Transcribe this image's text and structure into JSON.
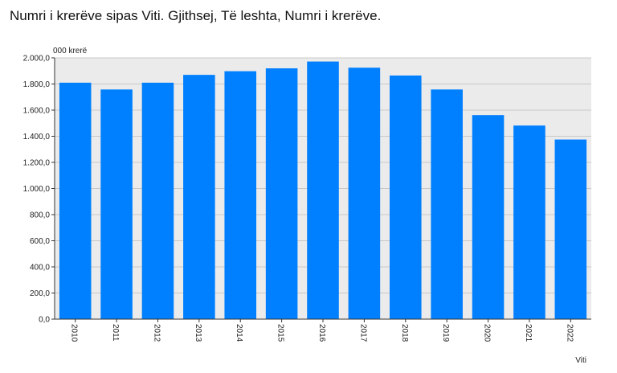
{
  "chart_data": {
    "type": "bar",
    "title": "Numri i krerëve sipas Viti. Gjithsej, Të leshta, Numri i krerëve.",
    "ylabel": "000 krerë",
    "xlabel": "Viti",
    "categories": [
      "2010",
      "2011",
      "2012",
      "2013",
      "2014",
      "2015",
      "2016",
      "2017",
      "2018",
      "2019",
      "2020",
      "2021",
      "2022"
    ],
    "series": [
      {
        "values": [
          1810,
          1758,
          1810,
          1870,
          1898,
          1920,
          1972,
          1925,
          1865,
          1758,
          1562,
          1482,
          1375
        ]
      }
    ],
    "ylim": [
      0,
      2000
    ],
    "yticks": [
      0,
      200,
      400,
      600,
      800,
      1000,
      1200,
      1400,
      1600,
      1800,
      2000
    ],
    "ytick_labels": [
      "0,0",
      "200,0",
      "400,0",
      "600,0",
      "800,0",
      "1.000,0",
      "1.200,0",
      "1.400,0",
      "1.600,0",
      "1.800,0",
      "2.000,0"
    ],
    "grid": true,
    "colors": {
      "bar": "#0080ff",
      "plot_background": "#ebebeb",
      "grid": "#c8c8c8"
    }
  }
}
